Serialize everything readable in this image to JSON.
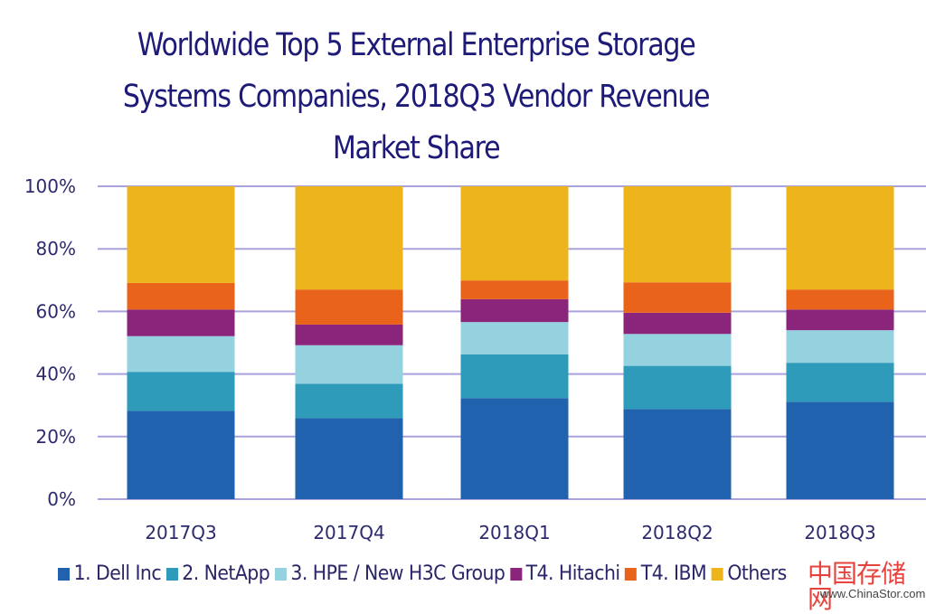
{
  "chart_data": {
    "type": "bar",
    "stacked": true,
    "percent_stacked": true,
    "title": "Worldwide Top 5 External Enterprise Storage Systems Companies, 2018Q3 Vendor Revenue Market Share",
    "title_lines": [
      "Worldwide Top 5 External  Enterprise Storage",
      "Systems Companies, 2018Q3 Vendor Revenue",
      "Market Share"
    ],
    "xlabel": "",
    "ylabel": "",
    "categories": [
      "2017Q3",
      "2017Q4",
      "2018Q1",
      "2018Q2",
      "2018Q3"
    ],
    "yticks": [
      "0%",
      "20%",
      "40%",
      "60%",
      "80%",
      "100%"
    ],
    "ytick_values": [
      0,
      20,
      40,
      60,
      80,
      100
    ],
    "ylim": [
      0,
      100
    ],
    "grid": true,
    "legend_position": "bottom",
    "series": [
      {
        "name": "1. Dell Inc",
        "color": "#2062ad",
        "values": [
          28.2,
          25.9,
          32.3,
          28.8,
          31.1
        ]
      },
      {
        "name": "2. NetApp",
        "color": "#2e9bbb",
        "values": [
          12.5,
          11.0,
          14.0,
          13.8,
          12.5
        ]
      },
      {
        "name": "3. HPE / New H3C Group",
        "color": "#94d2df",
        "values": [
          11.4,
          12.3,
          10.3,
          10.2,
          10.4
        ]
      },
      {
        "name": "T4. Hitachi",
        "color": "#8b247b",
        "values": [
          8.5,
          6.6,
          7.3,
          6.8,
          6.6
        ]
      },
      {
        "name": "T4. IBM",
        "color": "#ea631b",
        "values": [
          8.5,
          11.2,
          6.0,
          9.7,
          6.4
        ]
      },
      {
        "name": "Others",
        "color": "#eeb41c",
        "values": [
          30.9,
          33.0,
          30.1,
          30.7,
          33.0
        ]
      }
    ]
  },
  "watermark": {
    "chinese_text": "中国存储网",
    "url_text": "www.ChinaStor.com"
  }
}
